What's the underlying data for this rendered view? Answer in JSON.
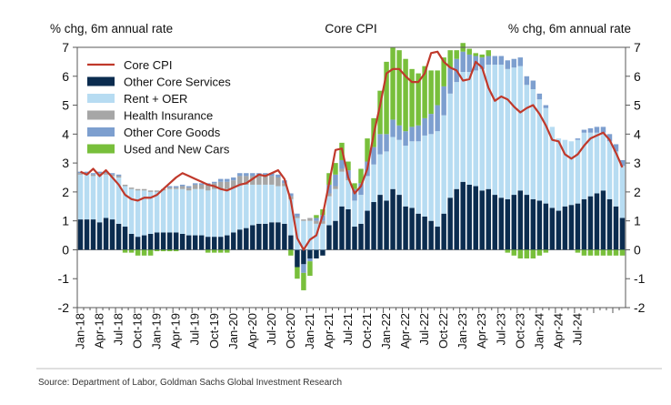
{
  "chart_data": {
    "type": "bar",
    "title": "Core CPI",
    "ylabel_left": "% chg, 6m annual rate",
    "ylabel_right": "% chg, 6m annual rate",
    "ylim": [
      -2,
      7
    ],
    "yticks": [
      -2,
      -1,
      0,
      1,
      2,
      3,
      4,
      5,
      6,
      7
    ],
    "start_month": "2018-01",
    "x_tick_labels": [
      "Jan-18",
      "Apr-18",
      "Jul-18",
      "Oct-18",
      "Jan-19",
      "Apr-19",
      "Jul-19",
      "Oct-19",
      "Jan-20",
      "Apr-20",
      "Jul-20",
      "Oct-20",
      "Jan-21",
      "Apr-21",
      "Jul-21",
      "Oct-21",
      "Jan-22",
      "Apr-22",
      "Jul-22",
      "Oct-22",
      "Jan-23",
      "Apr-23",
      "Jul-23",
      "Oct-23",
      "Jan-24",
      "Apr-24",
      "Jul-24"
    ],
    "legend_position": "top-left",
    "series": [
      {
        "name": "Other Core Services",
        "type": "stacked-bar",
        "color": "#0b2c4f",
        "values": [
          1.05,
          1.05,
          1.05,
          0.95,
          1.1,
          1.05,
          0.9,
          0.8,
          0.55,
          0.45,
          0.5,
          0.55,
          0.6,
          0.6,
          0.6,
          0.6,
          0.55,
          0.5,
          0.5,
          0.5,
          0.45,
          0.45,
          0.45,
          0.5,
          0.6,
          0.7,
          0.75,
          0.85,
          0.9,
          0.9,
          0.95,
          0.95,
          0.9,
          0.5,
          -0.6,
          -0.5,
          -0.3,
          -0.3,
          -0.2,
          0.85,
          1.0,
          1.5,
          1.4,
          0.8,
          0.9,
          1.35,
          1.65,
          1.9,
          1.7,
          2.1,
          1.9,
          1.5,
          1.45,
          1.25,
          1.15,
          1.0,
          0.8,
          1.25,
          1.8,
          2.1,
          2.35,
          2.25,
          2.2,
          2.05,
          2.1,
          1.9,
          1.8,
          1.75,
          1.9,
          2.05,
          1.9,
          1.75,
          1.7,
          1.6,
          1.45,
          1.35,
          1.5,
          1.55,
          1.6,
          1.75,
          1.85,
          1.95,
          2.05,
          1.75,
          1.5,
          1.1
        ]
      },
      {
        "name": "Rent + OER",
        "type": "stacked-bar",
        "color": "#b7dcf2",
        "values": [
          1.55,
          1.55,
          1.5,
          1.65,
          1.5,
          1.5,
          1.6,
          1.4,
          1.55,
          1.6,
          1.55,
          1.45,
          1.4,
          1.45,
          1.5,
          1.5,
          1.55,
          1.55,
          1.6,
          1.6,
          1.6,
          1.65,
          1.65,
          1.6,
          1.55,
          1.55,
          1.5,
          1.4,
          1.35,
          1.35,
          1.3,
          1.25,
          1.3,
          1.25,
          1.1,
          1.0,
          1.0,
          0.9,
          0.9,
          1.0,
          1.1,
          1.2,
          1.0,
          0.9,
          1.0,
          1.2,
          1.3,
          1.4,
          1.7,
          1.8,
          1.9,
          2.1,
          2.3,
          2.5,
          2.8,
          3.0,
          3.3,
          3.4,
          3.6,
          3.7,
          3.8,
          3.9,
          4.0,
          4.2,
          4.3,
          4.5,
          4.6,
          4.5,
          4.4,
          4.3,
          3.8,
          3.8,
          3.5,
          3.3,
          2.8,
          2.5,
          2.3,
          2.2,
          2.2,
          2.3,
          2.2,
          2.1,
          2.0,
          2.0,
          1.9,
          1.8
        ]
      },
      {
        "name": "Health Insurance",
        "type": "stacked-bar",
        "color": "#a6a6a6",
        "values": [
          0.05,
          0.05,
          0.05,
          0.05,
          0.05,
          0.05,
          0.05,
          0.05,
          0.05,
          0.05,
          0.05,
          0.05,
          0.05,
          0.05,
          0.05,
          0.05,
          0.1,
          0.1,
          0.15,
          0.15,
          0.2,
          0.2,
          0.25,
          0.25,
          0.25,
          0.3,
          0.3,
          0.3,
          0.3,
          0.3,
          0.3,
          0.3,
          0.1,
          0.1,
          0.05,
          0.05,
          0.1,
          0.1,
          0.1,
          0.1,
          0.1,
          0.1,
          0.05,
          0.0,
          0.0,
          0.0,
          0.0,
          0.0,
          0.0,
          0.0,
          0.0,
          0.0,
          0.0,
          0.0,
          0.0,
          0.0,
          0.0,
          0.0,
          0.0,
          0.0,
          0.0,
          0.0,
          0.0,
          0.0,
          0.0,
          0.0,
          0.0,
          0.0,
          0.0,
          0.0,
          0.0,
          0.0,
          0.0,
          0.0,
          0.0,
          0.0,
          0.0,
          0.0,
          0.0,
          0.0,
          0.0,
          0.0,
          0.0,
          0.0,
          0.0,
          0.0
        ]
      },
      {
        "name": "Other Core Goods",
        "type": "stacked-bar",
        "color": "#7d9fcf",
        "values": [
          0.05,
          0.05,
          0.05,
          0.05,
          0.05,
          0.05,
          0.05,
          0.0,
          0.0,
          0.0,
          0.0,
          0.0,
          0.0,
          0.0,
          0.05,
          0.05,
          0.05,
          0.05,
          0.05,
          0.05,
          0.05,
          0.05,
          0.1,
          0.1,
          0.1,
          0.1,
          0.1,
          0.1,
          0.1,
          0.1,
          0.1,
          0.1,
          0.1,
          0.1,
          0.1,
          -0.3,
          -0.1,
          0.1,
          0.2,
          0.3,
          0.4,
          0.3,
          0.3,
          0.4,
          0.4,
          0.5,
          0.6,
          0.7,
          0.6,
          0.6,
          0.5,
          0.5,
          0.5,
          0.55,
          0.6,
          0.7,
          0.9,
          1.0,
          0.9,
          0.8,
          0.7,
          0.6,
          0.5,
          0.4,
          0.3,
          0.3,
          0.3,
          0.3,
          0.3,
          0.3,
          0.3,
          0.3,
          0.2,
          0.1,
          0.0,
          0.0,
          0.0,
          0.0,
          0.05,
          0.1,
          0.15,
          0.2,
          0.2,
          0.25,
          0.25,
          0.2
        ]
      },
      {
        "name": "Used and New Cars",
        "type": "stacked-bar",
        "color": "#78bf3b",
        "values": [
          0.0,
          0.0,
          0.0,
          0.0,
          0.0,
          0.0,
          0.0,
          -0.1,
          -0.1,
          -0.2,
          -0.2,
          -0.2,
          -0.05,
          -0.05,
          -0.05,
          -0.05,
          0.0,
          0.0,
          0.0,
          0.0,
          -0.1,
          -0.1,
          -0.1,
          -0.1,
          0.0,
          0.0,
          0.0,
          0.0,
          0.0,
          0.0,
          0.0,
          0.0,
          0.0,
          -0.2,
          -0.4,
          -0.6,
          -0.5,
          0.1,
          0.2,
          0.4,
          0.4,
          0.6,
          0.3,
          0.2,
          0.5,
          0.8,
          1.0,
          1.5,
          2.5,
          2.5,
          2.6,
          2.5,
          2.0,
          1.8,
          1.8,
          1.5,
          1.2,
          1.0,
          0.6,
          0.3,
          0.3,
          0.2,
          0.1,
          0.1,
          0.2,
          0.0,
          0.0,
          -0.1,
          -0.2,
          -0.3,
          -0.3,
          -0.3,
          -0.2,
          -0.1,
          0.0,
          0.0,
          0.0,
          0.0,
          -0.1,
          -0.2,
          -0.2,
          -0.2,
          -0.2,
          -0.2,
          -0.2,
          -0.2
        ]
      },
      {
        "name": "Core CPI",
        "type": "line",
        "color": "#c0392b",
        "values": [
          2.7,
          2.6,
          2.8,
          2.55,
          2.75,
          2.5,
          2.25,
          1.9,
          1.75,
          1.7,
          1.8,
          1.8,
          1.9,
          2.1,
          2.3,
          2.5,
          2.65,
          2.55,
          2.45,
          2.35,
          2.25,
          2.2,
          2.1,
          2.05,
          2.15,
          2.25,
          2.3,
          2.45,
          2.6,
          2.55,
          2.65,
          2.75,
          2.45,
          1.7,
          0.4,
          0.0,
          0.35,
          0.5,
          1.2,
          2.3,
          3.45,
          3.5,
          2.5,
          1.95,
          2.2,
          2.8,
          4.0,
          5.0,
          6.1,
          6.25,
          6.25,
          6.0,
          5.8,
          5.8,
          6.1,
          6.8,
          6.85,
          6.5,
          6.3,
          6.2,
          5.85,
          5.9,
          6.5,
          6.3,
          5.6,
          5.15,
          5.3,
          5.2,
          4.95,
          4.75,
          4.9,
          5.0,
          4.7,
          4.3,
          3.8,
          3.75,
          3.3,
          3.15,
          3.3,
          3.6,
          3.85,
          3.95,
          4.05,
          3.8,
          3.35,
          2.85
        ]
      }
    ]
  },
  "source_note": "Source: Department of Labor, Goldman Sachs Global Investment Research"
}
